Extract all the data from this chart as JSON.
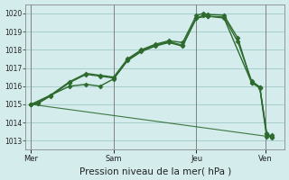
{
  "background_color": "#d4ecec",
  "grid_color": "#a8cccc",
  "line_color": "#2d6a2d",
  "title": "Pression niveau de la mer( hPa )",
  "ylim": [
    1012.5,
    1020.5
  ],
  "yticks": [
    1013,
    1014,
    1015,
    1016,
    1017,
    1018,
    1019,
    1020
  ],
  "x_day_labels": [
    {
      "label": "Mer",
      "x": 0.0
    },
    {
      "label": "Sam",
      "x": 3.0
    },
    {
      "label": "Jeu",
      "x": 6.0
    },
    {
      "label": "Ven",
      "x": 8.5
    }
  ],
  "series": [
    {
      "x": [
        0,
        0.25,
        0.7,
        1.4,
        2.0,
        2.5,
        3.0,
        3.5,
        4.0,
        4.5,
        5.0,
        5.5,
        6.0,
        6.25,
        6.4,
        7.0,
        7.5,
        8.0,
        8.3,
        8.55,
        8.75
      ],
      "y": [
        1015.0,
        1015.1,
        1015.5,
        1016.25,
        1016.7,
        1016.6,
        1016.5,
        1017.5,
        1018.0,
        1018.3,
        1018.5,
        1018.4,
        1019.9,
        1020.0,
        1019.95,
        1019.9,
        1018.65,
        1016.2,
        1015.9,
        1013.2,
        1013.3
      ],
      "marker": "D",
      "markersize": 2.5,
      "lw": 1.0
    },
    {
      "x": [
        0,
        0.25,
        0.7,
        1.4,
        2.0,
        2.5,
        3.0,
        3.5,
        4.0,
        4.5,
        5.0,
        5.5,
        6.0,
        6.25,
        6.4,
        7.0,
        7.5,
        8.0,
        8.3,
        8.55,
        8.75
      ],
      "y": [
        1015.0,
        1015.05,
        1015.45,
        1016.2,
        1016.65,
        1016.55,
        1016.45,
        1017.45,
        1017.95,
        1018.25,
        1018.45,
        1018.25,
        1019.75,
        1019.9,
        1019.85,
        1019.8,
        1018.45,
        1016.3,
        1015.95,
        1013.35,
        1013.15
      ],
      "marker": "D",
      "markersize": 2.5,
      "lw": 1.0
    },
    {
      "x": [
        0,
        1.4,
        2.0,
        2.5,
        3.0,
        3.5,
        4.0,
        4.5,
        5.0,
        5.5,
        6.0,
        6.4,
        7.0,
        8.0,
        8.3,
        8.55,
        8.75
      ],
      "y": [
        1015.0,
        1016.0,
        1016.1,
        1016.0,
        1016.4,
        1017.4,
        1017.9,
        1018.2,
        1018.4,
        1018.2,
        1019.75,
        1019.85,
        1019.75,
        1016.2,
        1015.95,
        1013.4,
        1013.2
      ],
      "marker": "D",
      "markersize": 2.5,
      "lw": 1.0
    },
    {
      "x": [
        0,
        8.75
      ],
      "y": [
        1015.0,
        1013.2
      ],
      "marker": null,
      "markersize": 0,
      "lw": 0.8
    }
  ],
  "x_vlines": [
    0.0,
    3.0,
    6.0,
    8.5
  ],
  "xtick_positions": [
    0.0,
    3.0,
    6.0,
    8.5
  ],
  "xlim": [
    -0.2,
    9.2
  ]
}
